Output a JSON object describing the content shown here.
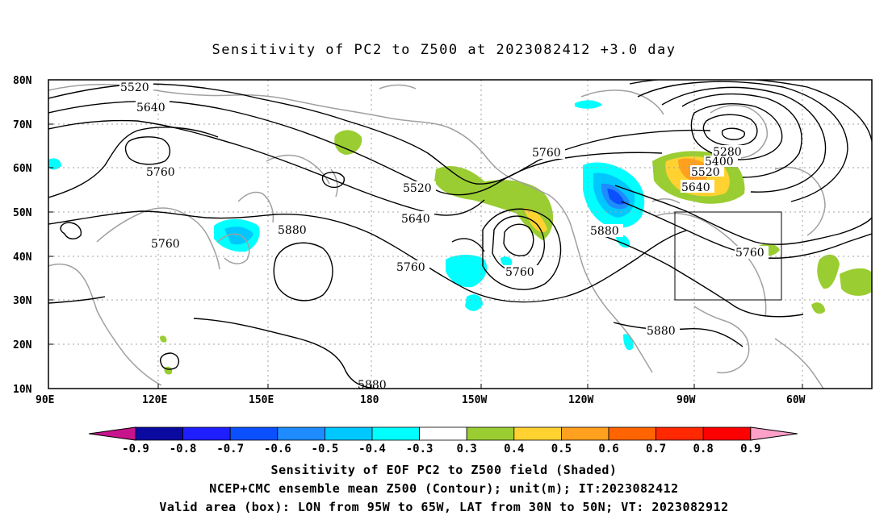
{
  "title": "Sensitivity of PC2 to Z500 at 2023082412 +3.0 day",
  "map": {
    "lat_labels": [
      "80N",
      "70N",
      "60N",
      "50N",
      "40N",
      "30N",
      "20N",
      "10N"
    ],
    "lon_labels": [
      "90E",
      "120E",
      "150E",
      "180",
      "150W",
      "120W",
      "90W",
      "60W"
    ],
    "contour_labels": {
      "c5520_a": "5520",
      "c5640_a": "5640",
      "c5760_a": "5760",
      "c5760_b": "5760",
      "c5520_b": "5520",
      "c5640_b": "5640",
      "c5760_c": "5760",
      "c5880_a": "5880",
      "c5760_d": "5760",
      "c5760_e": "5760",
      "c5880_b": "5880",
      "c5280": "5280",
      "c5400": "5400",
      "c5520_c": "5520",
      "c5640_c": "5640",
      "c5760_f": "5760",
      "c5880_c": "5880",
      "c5880_d": "5880"
    },
    "valid_box": {
      "lon_from": "95W",
      "lon_to": "65W",
      "lat_from": "30N",
      "lat_to": "50N"
    }
  },
  "colorbar": {
    "labels": [
      "-0.9",
      "-0.8",
      "-0.7",
      "-0.6",
      "-0.5",
      "-0.4",
      "-0.3",
      "0.3",
      "0.4",
      "0.5",
      "0.6",
      "0.7",
      "0.8",
      "0.9"
    ],
    "colors": [
      "#0a0aa0",
      "#1e1eff",
      "#0a50ff",
      "#1e8cff",
      "#00c8ff",
      "#00ffff",
      "#ffffff",
      "#9acd32",
      "#ffd232",
      "#ffa01e",
      "#ff6400",
      "#ff2800",
      "#ff0000"
    ],
    "low_arrow_color": "#c8148c",
    "high_arrow_color": "#ffa0c8"
  },
  "captions": {
    "line1": "Sensitivity of EOF PC2 to Z500 field (Shaded)",
    "line2": "NCEP+CMC ensemble mean Z500 (Contour); unit(m); IT:2023082412",
    "line3": "Valid area (box): LON from 95W to 65W, LAT from 30N to 50N; VT: 2023082912"
  }
}
